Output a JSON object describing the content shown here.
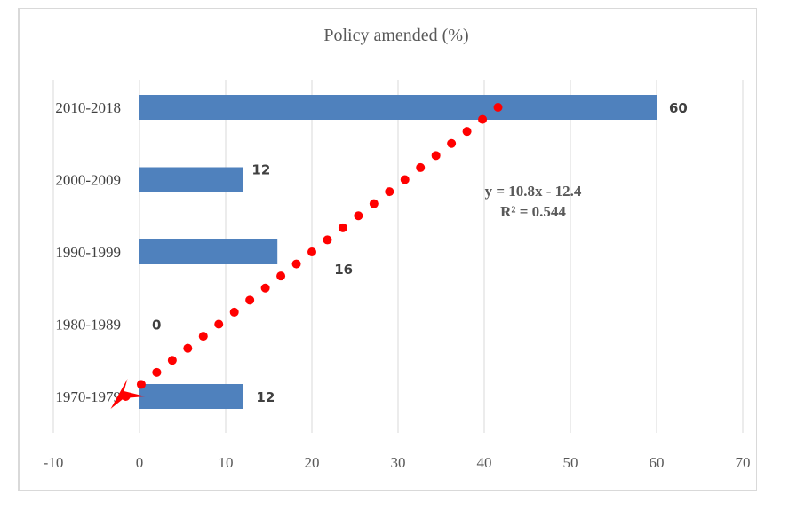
{
  "chart_data": {
    "type": "bar",
    "orientation": "horizontal",
    "title": "Policy amended (%)",
    "xlabel": "",
    "ylabel": "",
    "categories": [
      "1970-1979",
      "1980-1989",
      "1990-1999",
      "2000-2009",
      "2010-2018"
    ],
    "values": [
      12,
      0,
      16,
      12,
      60
    ],
    "data_labels": [
      "12",
      "0",
      "16",
      "12",
      "60"
    ],
    "xlim": [
      -10,
      70
    ],
    "x_ticks": [
      "-10",
      "0",
      "10",
      "20",
      "30",
      "40",
      "50",
      "60",
      "70"
    ],
    "grid": "vertical",
    "legend": "none",
    "bar_color": "#4f81bd",
    "trendline": {
      "type": "linear",
      "style": "dotted",
      "color": "#ff0000",
      "slope": 10.8,
      "intercept": -12.4,
      "equation_label": "y = 10.8x - 12.4",
      "r2_label": "R² = 0.544",
      "has_arrow": true
    }
  }
}
